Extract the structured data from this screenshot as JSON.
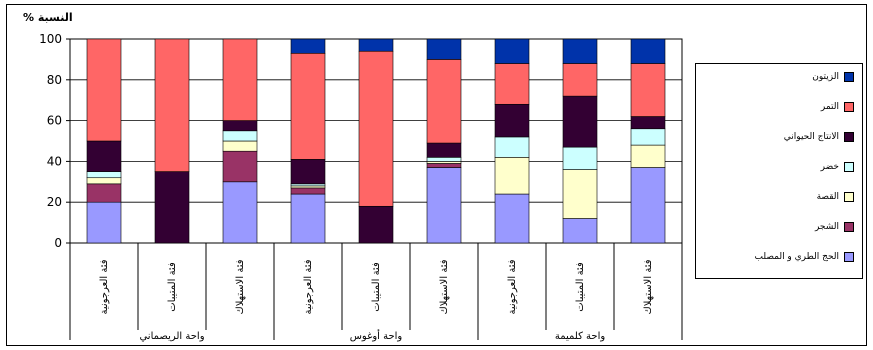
{
  "chart_data": {
    "type": "bar",
    "stacked": true,
    "ylabel": "النسبة %",
    "ylim": [
      0,
      100
    ],
    "yticks": [
      "0",
      "20",
      "40",
      "60",
      "80",
      "100"
    ],
    "grid": true,
    "legend_position": "right",
    "categories": [
      "فئة العرجونية",
      "فئة المتيبات",
      "فئة الاستهلاك",
      "فئة العرجونية",
      "فئة المتيبات",
      "فئة الاستهلاك",
      "فئة العرجونية",
      "فئة المتيبات",
      "فئة الاستهلاك"
    ],
    "groups": [
      {
        "label": "واحة الريصماني",
        "span": 3
      },
      {
        "label": "واحة أوغوس",
        "span": 3
      },
      {
        "label": "واحة كلميمة",
        "span": 3
      }
    ],
    "series": [
      {
        "name": "الحج الطري و المصلب",
        "color": "#9999ff",
        "values": [
          20,
          0,
          30,
          24,
          0,
          37,
          24,
          12,
          37
        ]
      },
      {
        "name": "الشجر",
        "color": "#993366",
        "values": [
          9,
          0,
          15,
          3,
          0,
          2,
          0,
          0,
          0
        ]
      },
      {
        "name": "القصة",
        "color": "#ffffcc",
        "values": [
          3,
          0,
          5,
          1,
          0,
          1,
          18,
          24,
          11
        ]
      },
      {
        "name": "خضر",
        "color": "#ccffff",
        "values": [
          3,
          0,
          5,
          1,
          0,
          2,
          10,
          11,
          8
        ]
      },
      {
        "name": "الانتاج الحيواني",
        "color": "#330033",
        "values": [
          15,
          35,
          5,
          12,
          18,
          7,
          16,
          25,
          6
        ]
      },
      {
        "name": "التمر",
        "color": "#ff6666",
        "values": [
          50,
          65,
          40,
          52,
          76,
          41,
          20,
          16,
          26
        ]
      },
      {
        "name": "الزيتون",
        "color": "#0033aa",
        "values": [
          0,
          0,
          0,
          7,
          6,
          10,
          12,
          12,
          12
        ]
      }
    ]
  }
}
